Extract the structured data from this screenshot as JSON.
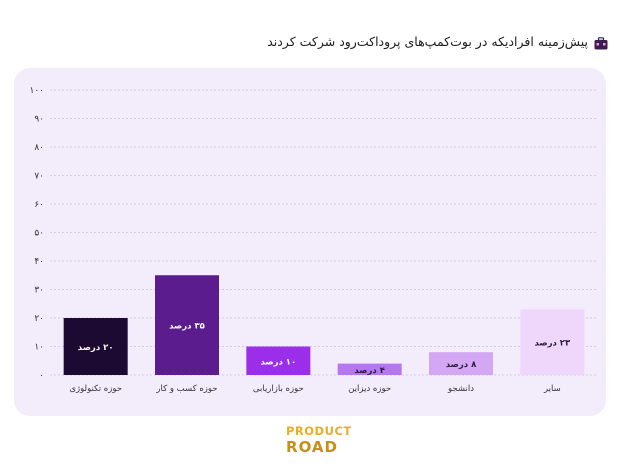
{
  "title": "پیش‌زمینه افرادیکه در بوت‌کمپ‌های پروداکت‌رود شرکت کردند",
  "title_icon": "briefcase-icon",
  "logo": {
    "line1": "PRODUCT",
    "line2": "ROAD"
  },
  "colors": {
    "panel": "#f3ecfb",
    "bars": [
      "#1d0a33",
      "#5b1c8e",
      "#9b2ee8",
      "#b577f0",
      "#d4a7f5",
      "#eed7fb"
    ],
    "label_light": "#ffffff",
    "label_dark": "#2a1c39"
  },
  "chart_data": {
    "type": "bar",
    "categories": [
      "حوزه تکنولوژی",
      "حوزه کسب و کار",
      "حوزه بازاریابی",
      "حوزه دیزاین",
      "دانشجو",
      "سایر"
    ],
    "values": [
      20,
      35,
      10,
      4,
      8,
      23
    ],
    "data_labels": [
      "۲۰ درصد",
      "۳۵ درصد",
      "۱۰ درصد",
      "۴ درصد",
      "۸ درصد",
      "۲۳ درصد"
    ],
    "yticks": [
      "۰",
      "۱۰",
      "۲۰",
      "۳۰",
      "۴۰",
      "۵۰",
      "۶۰",
      "۷۰",
      "۸۰",
      "۹۰",
      "۱۰۰"
    ],
    "ylim": [
      0,
      100
    ],
    "grid": true,
    "legend": "none"
  }
}
